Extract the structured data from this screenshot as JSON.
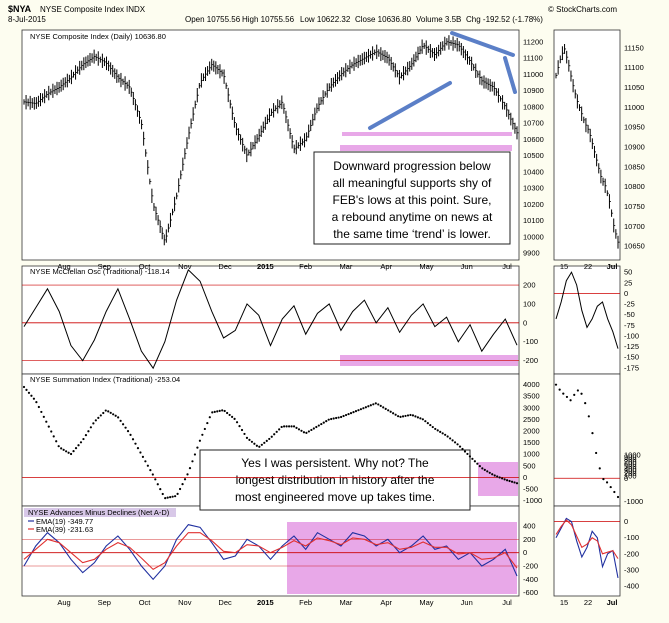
{
  "header": {
    "symbol": "$NYA",
    "title": "NYSE Composite Index",
    "exchange": "INDX",
    "date": "8-Jul-2015",
    "open": "Open 10755.56",
    "high": "High 10755.56",
    "low": "Low 10622.32",
    "close": "Close 10636.80",
    "volume": "Volume 3.5B",
    "chg": "Chg -192.52 (-1.78%)",
    "brand": "© StockCharts.com"
  },
  "annotations": {
    "top": [
      "Downward progression below",
      "all meaningful supports shy of",
      "FEB's lows at this point. Sure,",
      "a rebound anytime on news at",
      "the same time ‘trend’ is lower."
    ],
    "bottom": [
      "Yes I was persistent. Why not? The",
      "longest distribution in history after the",
      "most engineered move up takes time."
    ]
  },
  "colors": {
    "background": "#fdfdf0",
    "price": "#000000",
    "redline": "#cc0000",
    "highlight": "#e8a8e8",
    "trendline": "#5b7fc7",
    "ema_fast": "#2030a0",
    "ema_slow": "#e03030",
    "legend_box": "#d8c8e8"
  },
  "chart_data": [
    {
      "panel": "NYSE Composite Index (Daily)",
      "label": "NYSE Composite Index (Daily) 10636.80",
      "type": "bar",
      "ylim": [
        9870,
        11260
      ],
      "yticks": [
        9900,
        10000,
        10100,
        10200,
        10300,
        10400,
        10500,
        10600,
        10700,
        10800,
        10900,
        11000,
        11100,
        11200
      ],
      "x_labels": [
        "Aug",
        "Sep",
        "Oct",
        "Nov",
        "Dec",
        "2015",
        "Feb",
        "Mar",
        "Apr",
        "May",
        "Jun",
        "Jul"
      ],
      "closes": [
        10830,
        10820,
        10880,
        10920,
        10980,
        11060,
        11110,
        11070,
        10980,
        10920,
        10700,
        10200,
        9970,
        10250,
        10620,
        10950,
        11060,
        11000,
        10680,
        10500,
        10620,
        10760,
        10830,
        10540,
        10600,
        10800,
        10920,
        11000,
        11060,
        11100,
        11140,
        11100,
        10980,
        11060,
        11180,
        11120,
        11200,
        11180,
        11080,
        10960,
        10920,
        10800,
        10640
      ],
      "close": 10636.8
    },
    {
      "panel": "NYSE Composite Index (Daily) inset",
      "type": "bar",
      "ylim": [
        10620,
        11190
      ],
      "yticks": [
        10650,
        10700,
        10750,
        10800,
        10850,
        10900,
        10950,
        11000,
        11050,
        11100,
        11150
      ],
      "x_labels": [
        "15",
        "22",
        "Jul"
      ],
      "closes": [
        11080,
        11120,
        11150,
        11110,
        11060,
        11020,
        10990,
        10960,
        10940,
        10900,
        10860,
        10820,
        10800,
        10760,
        10700,
        10660
      ]
    },
    {
      "panel": "NYSE McClellan Osc (Traditional)",
      "label": "NYSE McClellan Osc (Traditional) -118.14",
      "type": "line",
      "ylim": [
        -260,
        290
      ],
      "yticks": [
        -200,
        -100,
        0,
        100,
        200
      ],
      "values": [
        -20,
        80,
        180,
        60,
        -120,
        -200,
        -90,
        60,
        180,
        20,
        -150,
        -240,
        -100,
        120,
        280,
        220,
        60,
        -80,
        -40,
        100,
        40,
        -120,
        20,
        90,
        -60,
        50,
        100,
        -40,
        60,
        120,
        0,
        80,
        -50,
        40,
        100,
        -20,
        30,
        -100,
        -10,
        -150,
        -60,
        20,
        -118
      ]
    },
    {
      "panel": "NYSE McClellan Osc inset",
      "type": "line",
      "ylim": [
        -185,
        60
      ],
      "yticks": [
        -175,
        -150,
        -125,
        -100,
        -75,
        -50,
        -25,
        0,
        25,
        50
      ],
      "values": [
        -60,
        -20,
        30,
        50,
        20,
        -40,
        -80,
        -60,
        -30,
        -20,
        -60,
        -90,
        -130
      ]
    },
    {
      "panel": "NYSE Summation Index (Traditional)",
      "label": "NYSE Summation Index (Traditional) -253.04",
      "type": "scatter",
      "ylim": [
        -1150,
        4200
      ],
      "yticks": [
        -1000,
        -500,
        0,
        500,
        1000,
        1500,
        2000,
        2500,
        3000,
        3500,
        4000
      ],
      "values": [
        3900,
        3300,
        2300,
        1300,
        1000,
        1600,
        2400,
        2900,
        2600,
        1900,
        1000,
        100,
        -900,
        -800,
        200,
        1600,
        2800,
        2900,
        2500,
        1700,
        1300,
        1700,
        2200,
        2200,
        1900,
        2200,
        2500,
        2600,
        2800,
        3000,
        3200,
        2900,
        2600,
        2700,
        2500,
        2100,
        1800,
        1400,
        900,
        400,
        100,
        -100,
        -253
      ]
    },
    {
      "panel": "NYSE Summation Index inset",
      "type": "scatter",
      "ylim": [
        -1100,
        4200
      ],
      "yticks": [
        -1000,
        0,
        100,
        200,
        300,
        400,
        500,
        600,
        700,
        800,
        900,
        1000
      ],
      "values": [
        4000,
        3700,
        3500,
        3300,
        3800,
        3600,
        3000,
        2000,
        800,
        0,
        -200,
        -500,
        -800
      ]
    },
    {
      "panel": "NYSE Advances Minus Declines (Net A-D)",
      "label": "NYSE Advances Minus Declines (Net A-D)",
      "type": "line",
      "ylim": [
        -620,
        460
      ],
      "yticks": [
        -600,
        -400,
        -200,
        0,
        200,
        400
      ],
      "series": [
        {
          "name": "EMA(19) -349.77",
          "values": [
            -200,
            100,
            300,
            150,
            -100,
            -300,
            -150,
            100,
            250,
            50,
            -200,
            -400,
            -200,
            200,
            420,
            380,
            150,
            -100,
            -50,
            200,
            100,
            -100,
            100,
            250,
            50,
            300,
            200,
            100,
            300,
            250,
            100,
            200,
            0,
            100,
            250,
            50,
            100,
            -100,
            0,
            -200,
            -100,
            50,
            -350
          ]
        },
        {
          "name": "EMA(39) -231.63",
          "values": [
            -100,
            50,
            200,
            150,
            0,
            -150,
            -100,
            50,
            150,
            80,
            -80,
            -250,
            -150,
            100,
            300,
            300,
            180,
            20,
            0,
            120,
            100,
            0,
            80,
            180,
            100,
            220,
            180,
            120,
            220,
            200,
            120,
            150,
            50,
            80,
            160,
            80,
            80,
            -20,
            0,
            -100,
            -80,
            0,
            -230
          ]
        }
      ]
    },
    {
      "panel": "NYSE Advances Minus Declines inset",
      "type": "line",
      "ylim": [
        -450,
        60
      ],
      "yticks": [
        -400,
        -300,
        -200,
        -100,
        0
      ],
      "x_labels": [
        "15",
        "22",
        "Jul"
      ],
      "series": [
        {
          "name": "EMA(19)",
          "values": [
            -100,
            -40,
            20,
            0,
            -120,
            -220,
            -160,
            -60,
            -100,
            -280,
            -200,
            -180,
            -350
          ]
        },
        {
          "name": "EMA(39)",
          "values": [
            -80,
            -30,
            10,
            -20,
            -90,
            -160,
            -140,
            -100,
            -120,
            -200,
            -190,
            -180,
            -230
          ]
        }
      ]
    }
  ]
}
